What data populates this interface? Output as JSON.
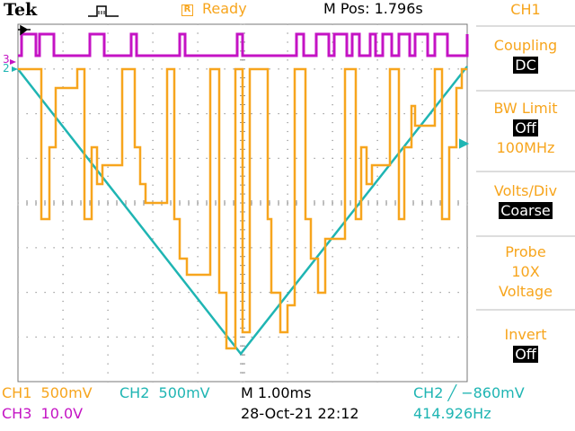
{
  "header": {
    "brand": "Tek",
    "acq_state": "Ready",
    "acq_state_box": "R",
    "horizontal_position": "M Pos: 1.796s"
  },
  "menu": {
    "title": "CH1",
    "items": [
      {
        "label": "Coupling",
        "value": "DC"
      },
      {
        "label": "BW Limit",
        "value": "Off",
        "extra": "100MHz"
      },
      {
        "label": "Volts/Div",
        "value": "Coarse"
      },
      {
        "label": "Probe",
        "value": "10X",
        "extra": "Voltage"
      },
      {
        "label": "Invert",
        "value": "Off"
      }
    ]
  },
  "status": {
    "ch1": "CH1  500mV",
    "ch2": "CH2  500mV",
    "timebase": "M 1.00ms",
    "trigger": "CH2 ╱ −860mV",
    "ch3": "CH3  10.0V",
    "datetime": "28-Oct-21 22:12",
    "frequency": "414.926Hz"
  },
  "markers": {
    "ch1_ch2": "2",
    "ch3": "3"
  },
  "colors": {
    "ch1": "#f7a51d",
    "ch2": "#1fb5b3",
    "ch3": "#c413c4",
    "grid": "#888888"
  }
}
